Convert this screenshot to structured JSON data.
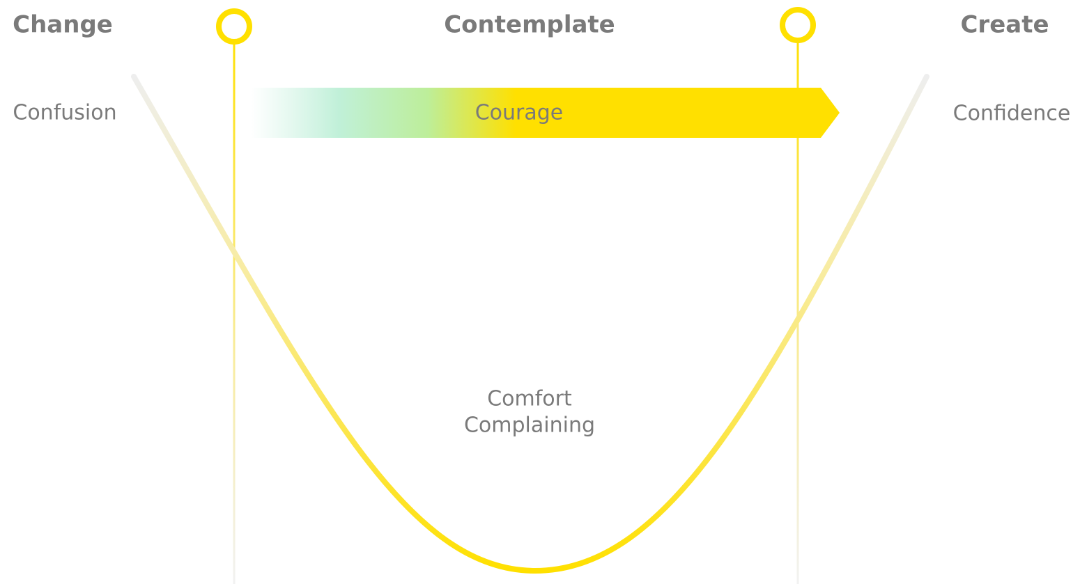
{
  "stages": [
    {
      "label": "Change"
    },
    {
      "label": "Contemplate"
    },
    {
      "label": "Create"
    }
  ],
  "states": {
    "left": "Confusion",
    "arrow": "Courage",
    "right": "Confidence",
    "bottom": [
      "Comfort",
      "Complaining"
    ]
  }
}
